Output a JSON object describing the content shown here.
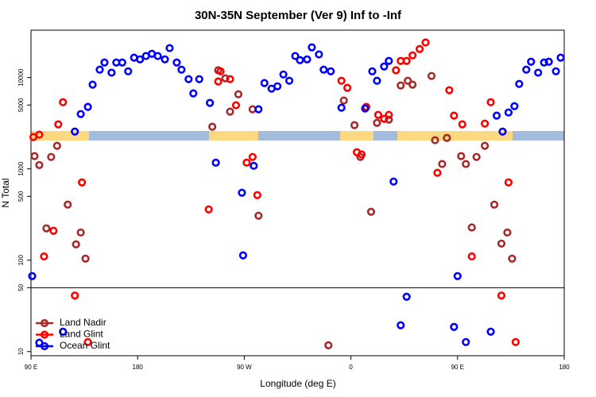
{
  "chart_data": {
    "type": "scatter",
    "title": "30N-35N September (Ver 9)   Inf to -Inf",
    "x_label": "Longitude (deg E)",
    "y_label": "N Total",
    "log_y": true,
    "xlim": [
      90,
      540
    ],
    "ylim": [
      9,
      33000
    ],
    "xticks": [
      {
        "value": 90,
        "label": "90 E"
      },
      180,
      {
        "value": 270,
        "label": "90 W"
      },
      {
        "value": 360,
        "label": "0"
      },
      {
        "value": 450,
        "label": "90 E"
      },
      {
        "value": 540,
        "label": "180"
      }
    ],
    "yticks": [
      10,
      50,
      100,
      500,
      1000,
      5000,
      10000
    ],
    "hline": 50,
    "legend": "lower left",
    "series": [
      {
        "name": "Land Nadir",
        "color": "#a52a2a",
        "x": [
          93,
          97,
          103,
          107,
          112,
          121,
          128,
          132,
          136,
          243,
          248,
          254,
          258,
          265,
          277,
          282,
          341,
          354,
          363,
          368,
          377,
          382,
          392,
          402,
          408,
          412,
          428,
          431,
          437,
          441,
          453,
          457,
          462,
          466,
          473,
          481,
          487,
          492,
          496
        ],
        "values": [
          1380,
          1100,
          223,
          1350,
          1790,
          406,
          149,
          201,
          104,
          2890,
          12000,
          9800,
          4230,
          6560,
          4490,
          307,
          11.7,
          5600,
          3010,
          1350,
          339,
          3190,
          3460,
          8190,
          9220,
          8350,
          10400,
          2060,
          1130,
          2180,
          1380,
          1130,
          228,
          1350,
          1790,
          406,
          152,
          201,
          104
        ]
      },
      {
        "name": "Land Glint",
        "color": "#ff0000",
        "x": [
          92,
          97,
          101,
          109,
          113,
          117,
          127,
          133,
          138,
          240,
          248,
          250,
          258,
          263,
          272,
          277,
          281,
          352,
          357,
          365,
          369,
          373,
          383,
          388,
          392,
          398,
          402,
          407,
          412,
          418,
          423,
          433,
          443,
          447,
          454,
          462,
          473,
          478,
          487,
          493,
          499
        ],
        "values": [
          2230,
          2370,
          110,
          210,
          3070,
          5370,
          41,
          711,
          12.7,
          360,
          9050,
          11700,
          9600,
          4970,
          1170,
          1350,
          516,
          9220,
          7710,
          1520,
          1440,
          4770,
          3900,
          3530,
          3900,
          12000,
          15200,
          15200,
          17500,
          20500,
          24200,
          906,
          7260,
          3830,
          3070,
          110,
          3130,
          5370,
          41,
          711,
          12.7
        ]
      },
      {
        "name": "Ocean Glint",
        "color": "#0000ff",
        "x": [
          91,
          97,
          117,
          127,
          132,
          138,
          142,
          148,
          152,
          158,
          162,
          167,
          172,
          177,
          182,
          187,
          192,
          197,
          203,
          207,
          213,
          217,
          223,
          227,
          232,
          241,
          246,
          268,
          269,
          278,
          282,
          287,
          293,
          298,
          303,
          308,
          313,
          317,
          323,
          327,
          333,
          337,
          343,
          352,
          372,
          378,
          382,
          388,
          392,
          396,
          402,
          407,
          447,
          450,
          457,
          478,
          483,
          488,
          493,
          498,
          502,
          508,
          512,
          518,
          523,
          527,
          533,
          537
        ],
        "values": [
          67,
          12.5,
          16.5,
          2560,
          3980,
          4770,
          8350,
          12200,
          14600,
          11300,
          14600,
          14600,
          11700,
          16500,
          15800,
          17200,
          18200,
          17200,
          15800,
          21000,
          14600,
          12200,
          9600,
          6700,
          9600,
          5270,
          1170,
          548,
          113,
          1080,
          4490,
          8690,
          7550,
          8020,
          10800,
          9220,
          17200,
          15500,
          15800,
          21400,
          17900,
          12200,
          11700,
          4670,
          4580,
          11700,
          9220,
          13200,
          15200,
          726,
          19.4,
          39.8,
          18.6,
          67,
          12.7,
          16.5,
          3830,
          2560,
          4140,
          4860,
          8510,
          12200,
          14900,
          11300,
          14600,
          14900,
          11700,
          16500
        ]
      }
    ]
  }
}
